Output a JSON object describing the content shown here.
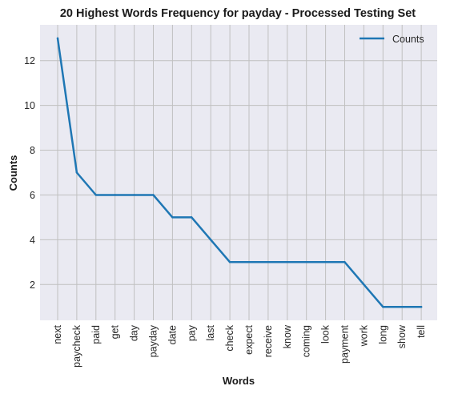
{
  "chart_data": {
    "type": "line",
    "title": "20 Highest Words Frequency for payday - Processed Testing Set",
    "xlabel": "Words",
    "ylabel": "Counts",
    "categories": [
      "next",
      "paycheck",
      "paid",
      "get",
      "day",
      "payday",
      "date",
      "pay",
      "last",
      "check",
      "expect",
      "receive",
      "know",
      "coming",
      "look",
      "payment",
      "work",
      "long",
      "show",
      "tell"
    ],
    "series": [
      {
        "name": "Counts",
        "values": [
          13,
          7,
          6,
          6,
          6,
          6,
          5,
          5,
          4,
          3,
          3,
          3,
          3,
          3,
          3,
          3,
          2,
          1,
          1,
          1
        ]
      }
    ],
    "y_ticks": [
      "2",
      "4",
      "6",
      "8",
      "10",
      "12"
    ],
    "ylim": [
      0.4,
      13.6
    ],
    "grid": true,
    "legend_position": "top-right",
    "colors": {
      "line": "#1f77b4",
      "plot_background": "#eaeaf2",
      "grid": "#c0c0c0"
    }
  }
}
